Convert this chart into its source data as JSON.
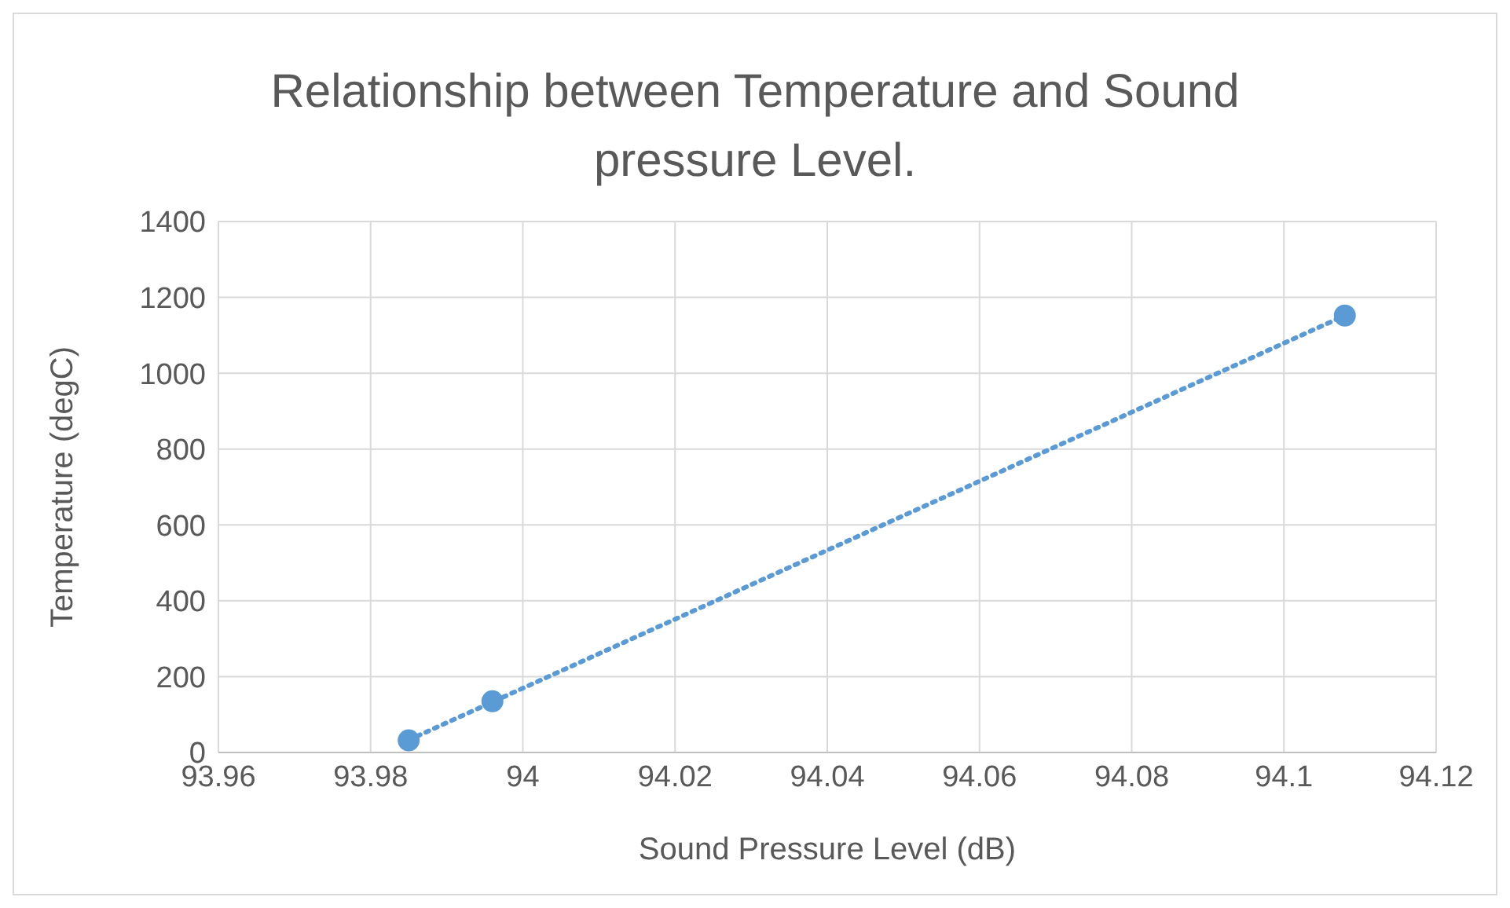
{
  "chart_data": {
    "type": "scatter",
    "title": "Relationship between Temperature and Sound pressure Level.",
    "xlabel": "Sound Pressure Level (dB)",
    "ylabel": "Temperature (degC)",
    "xlim": [
      93.96,
      94.12
    ],
    "xticks": [
      93.96,
      93.98,
      94,
      94.02,
      94.04,
      94.06,
      94.08,
      94.1,
      94.12
    ],
    "ylim": [
      0,
      1400
    ],
    "yticks": [
      0,
      200,
      400,
      600,
      800,
      1000,
      1200,
      1400
    ],
    "grid": true,
    "legend": false,
    "series": [
      {
        "type": "line",
        "x": [
          93.985,
          94.108
        ],
        "values": [
          33,
          1152
        ],
        "color": "#5b9bd5",
        "line_style": "dotted",
        "marker": "none"
      },
      {
        "type": "scatter",
        "x": [
          93.985,
          93.996,
          94.108
        ],
        "values": [
          32,
          135,
          1152
        ],
        "color": "#5b9bd5",
        "marker": "circle"
      }
    ]
  }
}
